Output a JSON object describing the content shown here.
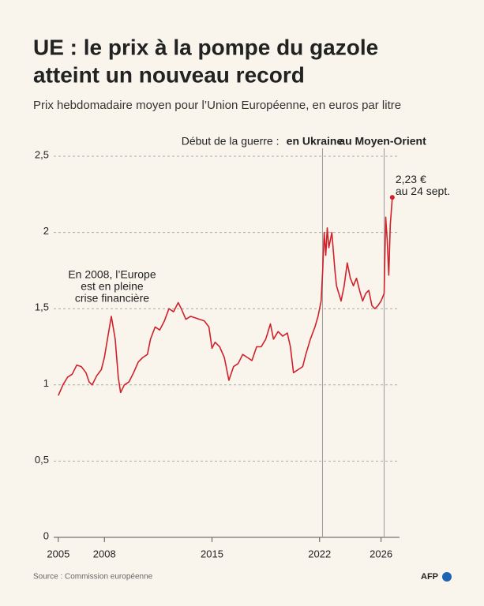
{
  "chart_data": {
    "type": "line",
    "title": [
      "UE : le prix à la pompe du gazole",
      "atteint un nouveau record"
    ],
    "subtitle": "Prix hebdomadaire moyen pour l’Union Européenne, en euros par litre",
    "source": "Source : Commission européenne",
    "logo": "AFP",
    "color": "#d0212a",
    "grid": true,
    "xlim": [
      2004.7,
      2027.2
    ],
    "ylim": [
      0,
      2.5
    ],
    "xticks": [
      2005,
      2008,
      2015,
      2022,
      2026
    ],
    "yticks": [
      0,
      {
        "value": 0.5,
        "label": "0,5"
      },
      1,
      {
        "value": 1.5,
        "label": "1,5"
      },
      2,
      {
        "value": 2.5,
        "label": "2,5"
      }
    ],
    "events_label": "Début de la guerre :",
    "events": [
      {
        "x": 2022.19,
        "label": "en Ukraine"
      },
      {
        "x": 2026.2,
        "label": "au Moyen-Orient"
      }
    ],
    "annotations": [
      {
        "x": 2008.5,
        "y": 1.72,
        "lines": [
          "En 2008, l’Europe",
          "est en pleine",
          "crise financière"
        ]
      },
      {
        "x": 2026.73,
        "y": 2.23,
        "lines": [
          "2,23 €",
          "au 24 sept."
        ]
      }
    ],
    "x": [
      2005.0,
      2005.3,
      2005.6,
      2005.9,
      2006.2,
      2006.5,
      2006.8,
      2007.0,
      2007.2,
      2007.5,
      2007.8,
      2008.0,
      2008.2,
      2008.45,
      2008.7,
      2008.9,
      2009.05,
      2009.3,
      2009.6,
      2009.9,
      2010.2,
      2010.5,
      2010.8,
      2011.0,
      2011.3,
      2011.6,
      2011.9,
      2012.2,
      2012.5,
      2012.8,
      2013.0,
      2013.3,
      2013.6,
      2013.9,
      2014.2,
      2014.5,
      2014.8,
      2015.0,
      2015.2,
      2015.5,
      2015.8,
      2016.1,
      2016.4,
      2016.7,
      2017.0,
      2017.3,
      2017.6,
      2017.9,
      2018.2,
      2018.5,
      2018.8,
      2019.0,
      2019.3,
      2019.6,
      2019.9,
      2020.1,
      2020.3,
      2020.6,
      2020.9,
      2021.1,
      2021.4,
      2021.7,
      2021.9,
      2022.1,
      2022.2,
      2022.3,
      2022.4,
      2022.5,
      2022.6,
      2022.8,
      2023.0,
      2023.1,
      2023.4,
      2023.6,
      2023.8,
      2024.0,
      2024.2,
      2024.4,
      2024.6,
      2024.8,
      2025.0,
      2025.2,
      2025.4,
      2025.6,
      2025.8,
      2026.0,
      2026.2,
      2026.3,
      2026.4,
      2026.5,
      2026.6,
      2026.73
    ],
    "values": [
      0.93,
      1.0,
      1.05,
      1.07,
      1.13,
      1.12,
      1.08,
      1.02,
      1.0,
      1.06,
      1.1,
      1.18,
      1.3,
      1.45,
      1.3,
      1.05,
      0.95,
      1.0,
      1.02,
      1.08,
      1.15,
      1.18,
      1.2,
      1.3,
      1.38,
      1.36,
      1.42,
      1.5,
      1.48,
      1.54,
      1.5,
      1.43,
      1.45,
      1.44,
      1.43,
      1.42,
      1.38,
      1.24,
      1.28,
      1.25,
      1.18,
      1.03,
      1.12,
      1.14,
      1.2,
      1.18,
      1.16,
      1.25,
      1.25,
      1.3,
      1.4,
      1.3,
      1.35,
      1.32,
      1.34,
      1.25,
      1.08,
      1.1,
      1.12,
      1.2,
      1.3,
      1.38,
      1.45,
      1.55,
      1.75,
      2.0,
      1.85,
      2.03,
      1.9,
      2.0,
      1.75,
      1.65,
      1.55,
      1.65,
      1.8,
      1.7,
      1.65,
      1.7,
      1.62,
      1.55,
      1.6,
      1.62,
      1.52,
      1.5,
      1.52,
      1.55,
      1.6,
      2.1,
      1.95,
      1.72,
      2.05,
      2.23
    ]
  }
}
